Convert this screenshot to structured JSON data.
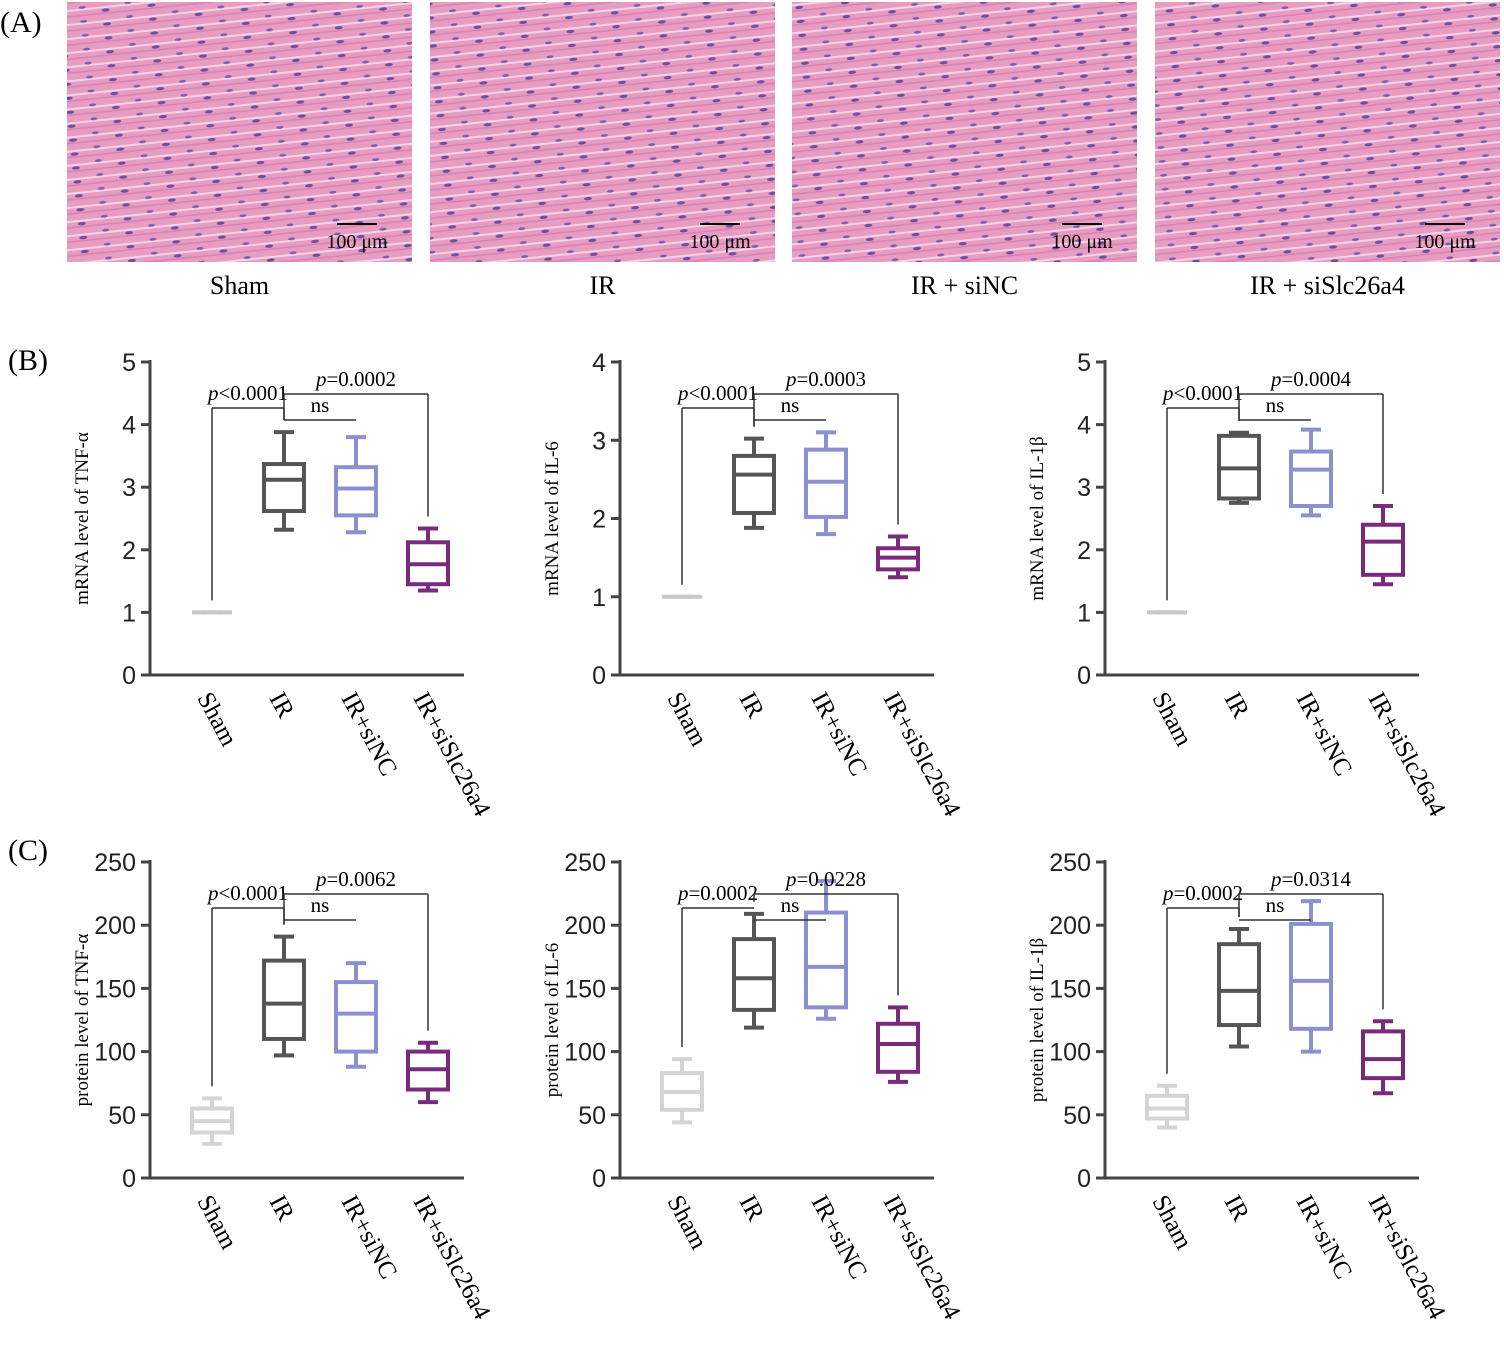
{
  "panels": {
    "A": "(A)",
    "B": "(B)",
    "C": "(C)"
  },
  "images": [
    {
      "caption": "Sham",
      "scale": "100 μm"
    },
    {
      "caption": "IR",
      "scale": "100 μm"
    },
    {
      "caption": "IR + siNC",
      "scale": "100 μm"
    },
    {
      "caption": "IR + siSlc26a4",
      "scale": "100 μm"
    }
  ],
  "chart_data": [
    {
      "type": "box",
      "ylabel": "mRNA level of TNF-α",
      "categories": [
        "Sham",
        "IR",
        "IR+siNC",
        "IR+siSlc26a4"
      ],
      "colors": [
        "#c8c8c8",
        "#555555",
        "#8c90d2",
        "#7a2a7c"
      ],
      "ylim": [
        0,
        5
      ],
      "yticks": [
        0,
        1,
        2,
        3,
        4,
        5
      ],
      "stats": [
        {
          "min": 1,
          "q1": 1,
          "median": 1,
          "q3": 1,
          "max": 1
        },
        {
          "min": 2.32,
          "q1": 2.62,
          "median": 3.12,
          "q3": 3.37,
          "max": 3.88
        },
        {
          "min": 2.28,
          "q1": 2.55,
          "median": 2.98,
          "q3": 3.32,
          "max": 3.8
        },
        {
          "min": 1.35,
          "q1": 1.45,
          "median": 1.77,
          "q3": 2.12,
          "max": 2.34
        }
      ],
      "comparisons": [
        {
          "groups": [
            0,
            1
          ],
          "italic": "p",
          "label": "<0.0001"
        },
        {
          "groups": [
            1,
            2
          ],
          "label": "ns"
        },
        {
          "groups": [
            1,
            3
          ],
          "italic": "p",
          "label": "=0.0002"
        }
      ]
    },
    {
      "type": "box",
      "ylabel": "mRNA level of IL-6",
      "categories": [
        "Sham",
        "IR",
        "IR+siNC",
        "IR+siSlc26a4"
      ],
      "colors": [
        "#c8c8c8",
        "#555555",
        "#8c90d2",
        "#7a2a7c"
      ],
      "ylim": [
        0,
        4
      ],
      "yticks": [
        0,
        1,
        2,
        3,
        4
      ],
      "stats": [
        {
          "min": 1,
          "q1": 1,
          "median": 1,
          "q3": 1,
          "max": 1
        },
        {
          "min": 1.88,
          "q1": 2.07,
          "median": 2.56,
          "q3": 2.8,
          "max": 3.02
        },
        {
          "min": 1.8,
          "q1": 2.02,
          "median": 2.47,
          "q3": 2.88,
          "max": 3.1
        },
        {
          "min": 1.25,
          "q1": 1.35,
          "median": 1.5,
          "q3": 1.62,
          "max": 1.77
        }
      ],
      "comparisons": [
        {
          "groups": [
            0,
            1
          ],
          "italic": "p",
          "label": "<0.0001"
        },
        {
          "groups": [
            1,
            2
          ],
          "label": "ns"
        },
        {
          "groups": [
            1,
            3
          ],
          "italic": "p",
          "label": "=0.0003"
        }
      ]
    },
    {
      "type": "box",
      "ylabel": "mRNA level of IL-1β",
      "categories": [
        "Sham",
        "IR",
        "IR+siNC",
        "IR+siSlc26a4"
      ],
      "colors": [
        "#c8c8c8",
        "#555555",
        "#8c90d2",
        "#7a2a7c"
      ],
      "ylim": [
        0,
        5
      ],
      "yticks": [
        0,
        1,
        2,
        3,
        4,
        5
      ],
      "stats": [
        {
          "min": 1,
          "q1": 1,
          "median": 1,
          "q3": 1,
          "max": 1
        },
        {
          "min": 2.75,
          "q1": 2.82,
          "median": 3.3,
          "q3": 3.82,
          "max": 3.87
        },
        {
          "min": 2.55,
          "q1": 2.7,
          "median": 3.28,
          "q3": 3.57,
          "max": 3.92
        },
        {
          "min": 1.45,
          "q1": 1.6,
          "median": 2.13,
          "q3": 2.4,
          "max": 2.7
        }
      ],
      "comparisons": [
        {
          "groups": [
            0,
            1
          ],
          "italic": "p",
          "label": "<0.0001"
        },
        {
          "groups": [
            1,
            2
          ],
          "label": "ns"
        },
        {
          "groups": [
            1,
            3
          ],
          "italic": "p",
          "label": "=0.0004"
        }
      ]
    },
    {
      "type": "box",
      "ylabel": "protein level of TNF-α",
      "categories": [
        "Sham",
        "IR",
        "IR+siNC",
        "IR+siSlc26a4"
      ],
      "colors": [
        "#d4d4d4",
        "#555555",
        "#8c90d2",
        "#7a2a7c"
      ],
      "ylim": [
        0,
        250
      ],
      "yticks": [
        0,
        50,
        100,
        150,
        200,
        250
      ],
      "stats": [
        {
          "min": 27,
          "q1": 36,
          "median": 45,
          "q3": 55,
          "max": 63
        },
        {
          "min": 97,
          "q1": 110,
          "median": 138,
          "q3": 172,
          "max": 191
        },
        {
          "min": 88,
          "q1": 100,
          "median": 130,
          "q3": 155,
          "max": 170
        },
        {
          "min": 60,
          "q1": 70,
          "median": 86,
          "q3": 100,
          "max": 107
        }
      ],
      "comparisons": [
        {
          "groups": [
            0,
            1
          ],
          "italic": "p",
          "label": "<0.0001"
        },
        {
          "groups": [
            1,
            2
          ],
          "label": "ns"
        },
        {
          "groups": [
            1,
            3
          ],
          "italic": "p",
          "label": "=0.0062"
        }
      ]
    },
    {
      "type": "box",
      "ylabel": "protein level of IL-6",
      "categories": [
        "Sham",
        "IR",
        "IR+siNC",
        "IR+siSlc26a4"
      ],
      "colors": [
        "#d4d4d4",
        "#555555",
        "#8c90d2",
        "#7a2a7c"
      ],
      "ylim": [
        0,
        250
      ],
      "yticks": [
        0,
        50,
        100,
        150,
        200,
        250
      ],
      "stats": [
        {
          "min": 44,
          "q1": 54,
          "median": 68,
          "q3": 83,
          "max": 94
        },
        {
          "min": 119,
          "q1": 133,
          "median": 158,
          "q3": 189,
          "max": 209
        },
        {
          "min": 126,
          "q1": 135,
          "median": 167,
          "q3": 210,
          "max": 235
        },
        {
          "min": 76,
          "q1": 84,
          "median": 106,
          "q3": 122,
          "max": 135
        }
      ],
      "comparisons": [
        {
          "groups": [
            0,
            1
          ],
          "italic": "p",
          "label": "=0.0002"
        },
        {
          "groups": [
            1,
            2
          ],
          "label": "ns"
        },
        {
          "groups": [
            1,
            3
          ],
          "italic": "p",
          "label": "=0.0228"
        }
      ]
    },
    {
      "type": "box",
      "ylabel": "protein level of IL-1β",
      "categories": [
        "Sham",
        "IR",
        "IR+siNC",
        "IR+siSlc26a4"
      ],
      "colors": [
        "#d4d4d4",
        "#555555",
        "#8c90d2",
        "#7a2a7c"
      ],
      "ylim": [
        0,
        250
      ],
      "yticks": [
        0,
        50,
        100,
        150,
        200,
        250
      ],
      "stats": [
        {
          "min": 40,
          "q1": 47,
          "median": 55,
          "q3": 65,
          "max": 73
        },
        {
          "min": 104,
          "q1": 121,
          "median": 148,
          "q3": 185,
          "max": 197
        },
        {
          "min": 100,
          "q1": 118,
          "median": 156,
          "q3": 201,
          "max": 219
        },
        {
          "min": 67,
          "q1": 79,
          "median": 94,
          "q3": 116,
          "max": 124
        }
      ],
      "comparisons": [
        {
          "groups": [
            0,
            1
          ],
          "italic": "p",
          "label": "=0.0002"
        },
        {
          "groups": [
            1,
            2
          ],
          "label": "ns"
        },
        {
          "groups": [
            1,
            3
          ],
          "italic": "p",
          "label": "=0.0314"
        }
      ]
    }
  ]
}
